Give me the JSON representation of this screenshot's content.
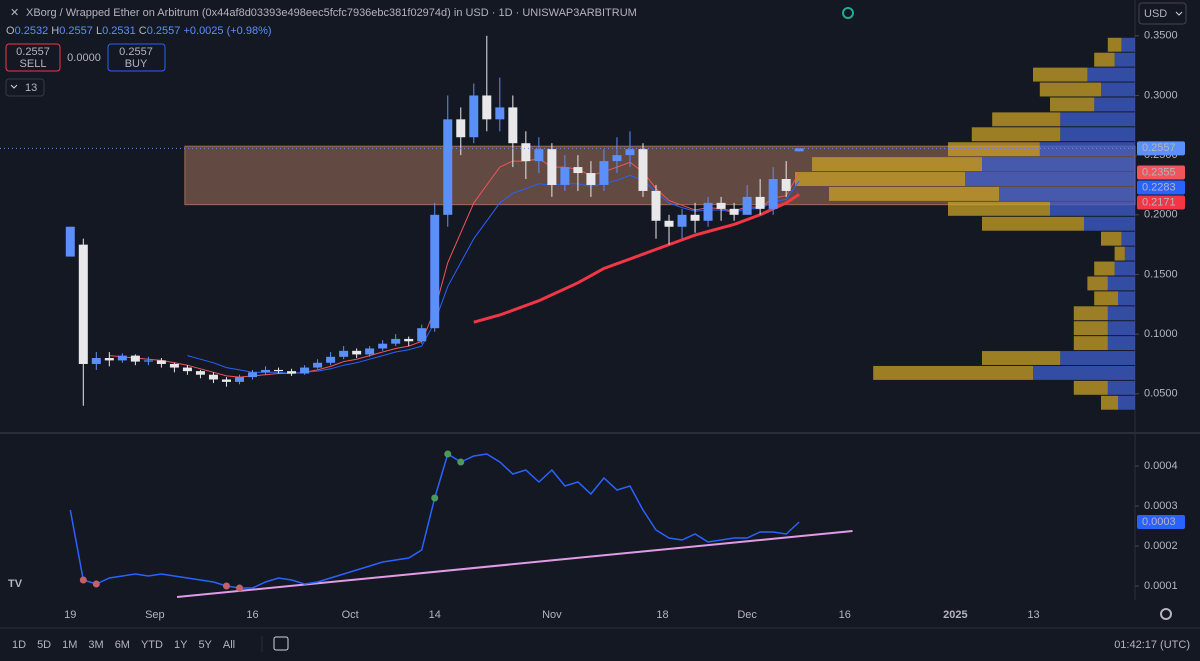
{
  "chart_data": {
    "type": "candlestick",
    "title": "XBorg / Wrapped Ether on Arbitrum (0x44af8d03393e498eec5fcfc7936ebc381f02974d) in USD · 1D · UNISWAP3ARBITRUM",
    "change_label": "+0.0025 (+0.98%)",
    "up_color": "#5b8ff9",
    "down_color": "#e8e8ea",
    "open": [
      0.165,
      0.175,
      0.075,
      0.08,
      0.078,
      0.082,
      0.077,
      0.078,
      0.075,
      0.072,
      0.069,
      0.066,
      0.062,
      0.06,
      0.064,
      0.068,
      0.07,
      0.069,
      0.067,
      0.072,
      0.076,
      0.081,
      0.086,
      0.083,
      0.088,
      0.092,
      0.096,
      0.094,
      0.105,
      0.2,
      0.28,
      0.265,
      0.3,
      0.28,
      0.29,
      0.26,
      0.245,
      0.255,
      0.225,
      0.24,
      0.235,
      0.225,
      0.245,
      0.25,
      0.255,
      0.22,
      0.195,
      0.19,
      0.2,
      0.195,
      0.21,
      0.205,
      0.2,
      0.215,
      0.205,
      0.23,
      0.2532
    ],
    "high": [
      0.19,
      0.18,
      0.085,
      0.085,
      0.084,
      0.083,
      0.081,
      0.08,
      0.076,
      0.074,
      0.07,
      0.068,
      0.064,
      0.066,
      0.07,
      0.073,
      0.072,
      0.071,
      0.074,
      0.079,
      0.085,
      0.09,
      0.088,
      0.09,
      0.095,
      0.1,
      0.098,
      0.108,
      0.21,
      0.3,
      0.29,
      0.31,
      0.35,
      0.315,
      0.3,
      0.27,
      0.265,
      0.26,
      0.25,
      0.25,
      0.245,
      0.255,
      0.265,
      0.27,
      0.26,
      0.225,
      0.2,
      0.205,
      0.21,
      0.215,
      0.215,
      0.21,
      0.225,
      0.23,
      0.24,
      0.245,
      0.2557
    ],
    "low": [
      0.165,
      0.04,
      0.07,
      0.073,
      0.076,
      0.074,
      0.074,
      0.072,
      0.068,
      0.066,
      0.063,
      0.059,
      0.056,
      0.058,
      0.062,
      0.066,
      0.067,
      0.065,
      0.066,
      0.071,
      0.074,
      0.079,
      0.08,
      0.081,
      0.086,
      0.09,
      0.09,
      0.092,
      0.102,
      0.19,
      0.25,
      0.26,
      0.27,
      0.27,
      0.24,
      0.23,
      0.235,
      0.215,
      0.22,
      0.22,
      0.215,
      0.22,
      0.235,
      0.24,
      0.215,
      0.18,
      0.175,
      0.18,
      0.185,
      0.19,
      0.195,
      0.195,
      0.2,
      0.2,
      0.2,
      0.215,
      0.2531
    ],
    "close": [
      0.19,
      0.075,
      0.08,
      0.078,
      0.082,
      0.077,
      0.078,
      0.075,
      0.072,
      0.069,
      0.066,
      0.062,
      0.06,
      0.064,
      0.068,
      0.07,
      0.069,
      0.067,
      0.072,
      0.076,
      0.081,
      0.086,
      0.083,
      0.088,
      0.092,
      0.096,
      0.094,
      0.105,
      0.2,
      0.28,
      0.265,
      0.3,
      0.28,
      0.29,
      0.26,
      0.245,
      0.255,
      0.225,
      0.24,
      0.235,
      0.225,
      0.245,
      0.25,
      0.255,
      0.22,
      0.195,
      0.19,
      0.2,
      0.195,
      0.21,
      0.205,
      0.2,
      0.215,
      0.205,
      0.23,
      0.22,
      0.2557
    ],
    "lines": [
      {
        "color": "#f2545b",
        "width": 1,
        "values": [
          null,
          null,
          null,
          0.082,
          0.081,
          0.08,
          0.079,
          0.078,
          0.076,
          0.074,
          0.071,
          0.068,
          0.065,
          0.064,
          0.065,
          0.066,
          0.067,
          0.067,
          0.068,
          0.07,
          0.073,
          0.077,
          0.079,
          0.082,
          0.085,
          0.088,
          0.09,
          0.094,
          0.12,
          0.16,
          0.185,
          0.21,
          0.225,
          0.24,
          0.245,
          0.245,
          0.247,
          0.24,
          0.24,
          0.238,
          0.233,
          0.236,
          0.24,
          0.244,
          0.236,
          0.222,
          0.212,
          0.208,
          0.204,
          0.206,
          0.205,
          0.203,
          0.207,
          0.206,
          0.214,
          0.216,
          0.2355
        ]
      },
      {
        "color": "#2962ff",
        "width": 1,
        "values": [
          null,
          null,
          null,
          null,
          null,
          null,
          null,
          null,
          null,
          0.082,
          0.079,
          0.076,
          0.072,
          0.07,
          0.068,
          0.068,
          0.068,
          0.067,
          0.068,
          0.069,
          0.071,
          0.074,
          0.076,
          0.079,
          0.082,
          0.085,
          0.087,
          0.09,
          0.11,
          0.14,
          0.16,
          0.18,
          0.195,
          0.21,
          0.218,
          0.222,
          0.226,
          0.225,
          0.226,
          0.226,
          0.224,
          0.226,
          0.229,
          0.233,
          0.229,
          0.219,
          0.21,
          0.206,
          0.203,
          0.204,
          0.204,
          0.202,
          0.205,
          0.205,
          0.211,
          0.213,
          0.2283
        ]
      },
      {
        "color": "#f23645",
        "width": 3,
        "values": [
          null,
          null,
          null,
          null,
          null,
          null,
          null,
          null,
          null,
          null,
          null,
          null,
          null,
          null,
          null,
          null,
          null,
          null,
          null,
          null,
          null,
          null,
          null,
          null,
          null,
          null,
          null,
          null,
          null,
          null,
          null,
          0.11,
          0.113,
          0.116,
          0.12,
          0.124,
          0.128,
          0.133,
          0.138,
          0.143,
          0.149,
          0.155,
          0.159,
          0.163,
          0.167,
          0.171,
          0.175,
          0.179,
          0.183,
          0.186,
          0.189,
          0.192,
          0.196,
          0.2,
          0.205,
          0.21,
          0.2171
        ]
      }
    ],
    "zone": {
      "low": 0.2085,
      "high": 0.2575,
      "start": 8.8,
      "color": "#c08466"
    },
    "volume_profile": {
      "up_color": "#3f5fd0",
      "down_color": "#c9a227",
      "row_height": 0.0125,
      "price": [
        0.3425,
        0.33,
        0.3175,
        0.305,
        0.2925,
        0.28,
        0.2675,
        0.255,
        0.2425,
        0.23,
        0.2175,
        0.205,
        0.1925,
        0.18,
        0.1675,
        0.155,
        0.1425,
        0.13,
        0.1175,
        0.105,
        0.0925,
        0.08,
        0.0675,
        0.055,
        0.0425
      ],
      "down": [
        4,
        6,
        16,
        18,
        13,
        20,
        26,
        27,
        50,
        50,
        50,
        30,
        30,
        6,
        3,
        6,
        6,
        7,
        10,
        10,
        10,
        23,
        47,
        10,
        5
      ],
      "up": [
        4,
        6,
        14,
        10,
        12,
        22,
        22,
        28,
        45,
        50,
        40,
        25,
        15,
        4,
        3,
        6,
        8,
        5,
        8,
        8,
        8,
        22,
        30,
        8,
        5
      ]
    },
    "xlim": [
      -5.4,
      81.8
    ],
    "xticks": [
      {
        "value": 0,
        "label": "19"
      },
      {
        "value": 6.5,
        "label": "Sep"
      },
      {
        "value": 14,
        "label": "16"
      },
      {
        "value": 21.5,
        "label": "Oct"
      },
      {
        "value": 28,
        "label": "14"
      },
      {
        "value": 37,
        "label": "Nov"
      },
      {
        "value": 45.5,
        "label": "18"
      },
      {
        "value": 52,
        "label": "Dec"
      },
      {
        "value": 59.5,
        "label": "16"
      },
      {
        "value": 68,
        "label": "2025",
        "major": true
      },
      {
        "value": 74,
        "label": "13"
      }
    ],
    "ylim": [
      0.018,
      0.38
    ],
    "yticks": [
      {
        "value": 0.05,
        "label": "0.0500"
      },
      {
        "value": 0.1,
        "label": "0.1000"
      },
      {
        "value": 0.15,
        "label": "0.1500"
      },
      {
        "value": 0.2,
        "label": "0.2000"
      },
      {
        "value": 0.25,
        "label": "0.2500"
      },
      {
        "value": 0.3,
        "label": "0.3000"
      },
      {
        "value": 0.35,
        "label": "0.3500"
      }
    ],
    "indicator": {
      "color": "#2962ff",
      "values": [
        0.00029,
        0.000115,
        0.000105,
        0.00012,
        0.000125,
        0.00013,
        0.000125,
        0.00013,
        0.000125,
        0.00012,
        0.000115,
        0.00011,
        0.0001,
        9.5e-05,
        9.5e-05,
        0.00011,
        0.00012,
        0.000115,
        0.000105,
        0.00011,
        0.00012,
        0.00013,
        0.00014,
        0.00015,
        0.00016,
        0.000165,
        0.00017,
        0.00019,
        0.00032,
        0.00043,
        0.00041,
        0.000425,
        0.00043,
        0.00041,
        0.00038,
        0.00039,
        0.00036,
        0.00039,
        0.00035,
        0.00036,
        0.00033,
        0.00037,
        0.00034,
        0.00035,
        0.00029,
        0.00024,
        0.00022,
        0.000215,
        0.00023,
        0.00021,
        0.000215,
        0.00022,
        0.00022,
        0.000235,
        0.000235,
        0.00023,
        0.00026
      ],
      "last_label": "0.0003",
      "ylim": [
        6.5e-05,
        0.000475
      ],
      "yticks": [
        0.0004,
        0.0003,
        0.0002,
        0.0001
      ],
      "trendline": {
        "color": "#e29be6",
        "x": [
          8.2,
          60.1
        ],
        "y": [
          7.25e-05,
          0.0002375
        ]
      },
      "red_markers": [
        1,
        2,
        12,
        13
      ],
      "red_color": "#c5606b",
      "green_markers": [
        28,
        29,
        30
      ],
      "green_color": "#4c9a5a"
    }
  },
  "ui": {
    "ohlc_letters": [
      "O",
      "H",
      "L",
      "C"
    ],
    "sell_price": "0.2557",
    "sell": "SELL",
    "spread": "0.0000",
    "buy_price": "0.2557",
    "buy": "BUY",
    "indicator_count": "13",
    "currency": "USD",
    "ranges": [
      "1D",
      "5D",
      "1M",
      "3M",
      "6M",
      "YTD",
      "1Y",
      "5Y",
      "All"
    ],
    "clock": "01:42:17 (UTC)"
  }
}
